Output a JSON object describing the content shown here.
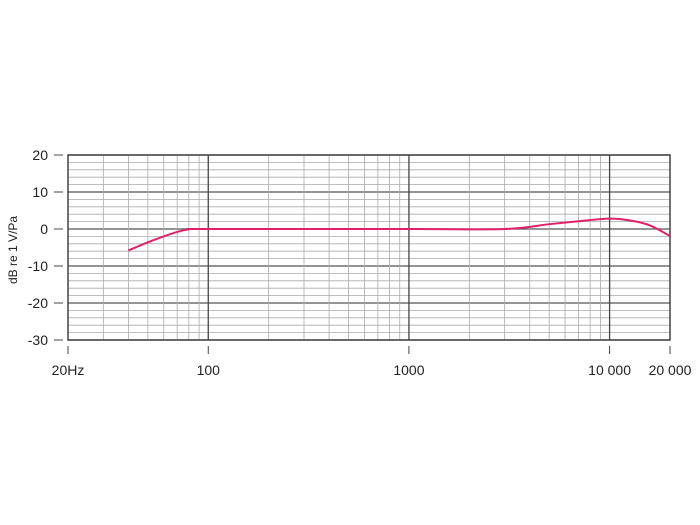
{
  "chart_data": {
    "type": "line",
    "title": "",
    "xlabel": "",
    "ylabel": "dB re 1 V/Pa",
    "xscale": "log",
    "xlim": [
      20,
      20000
    ],
    "ylim": [
      -30,
      20
    ],
    "grid": true,
    "x_tick_values": [
      20,
      100,
      1000,
      10000,
      20000
    ],
    "x_tick_labels": [
      "20Hz",
      "100",
      "1000",
      "10 000",
      "20 000"
    ],
    "y_tick_values": [
      20,
      10,
      0,
      -10,
      -20,
      -30
    ],
    "y_tick_labels": [
      "20",
      "10",
      "0",
      "-10",
      "-20",
      "-30"
    ],
    "line_color": "#e0206a",
    "series": [
      {
        "x": [
          40,
          50,
          60,
          70,
          80,
          100,
          1000,
          3000,
          5000,
          7000,
          10000,
          13000,
          16000,
          20000
        ],
        "y": [
          -5.8,
          -3.6,
          -2.0,
          -0.8,
          -0.1,
          0,
          0,
          0,
          1.3,
          2.1,
          2.8,
          2.2,
          0.9,
          -1.9
        ]
      }
    ]
  }
}
